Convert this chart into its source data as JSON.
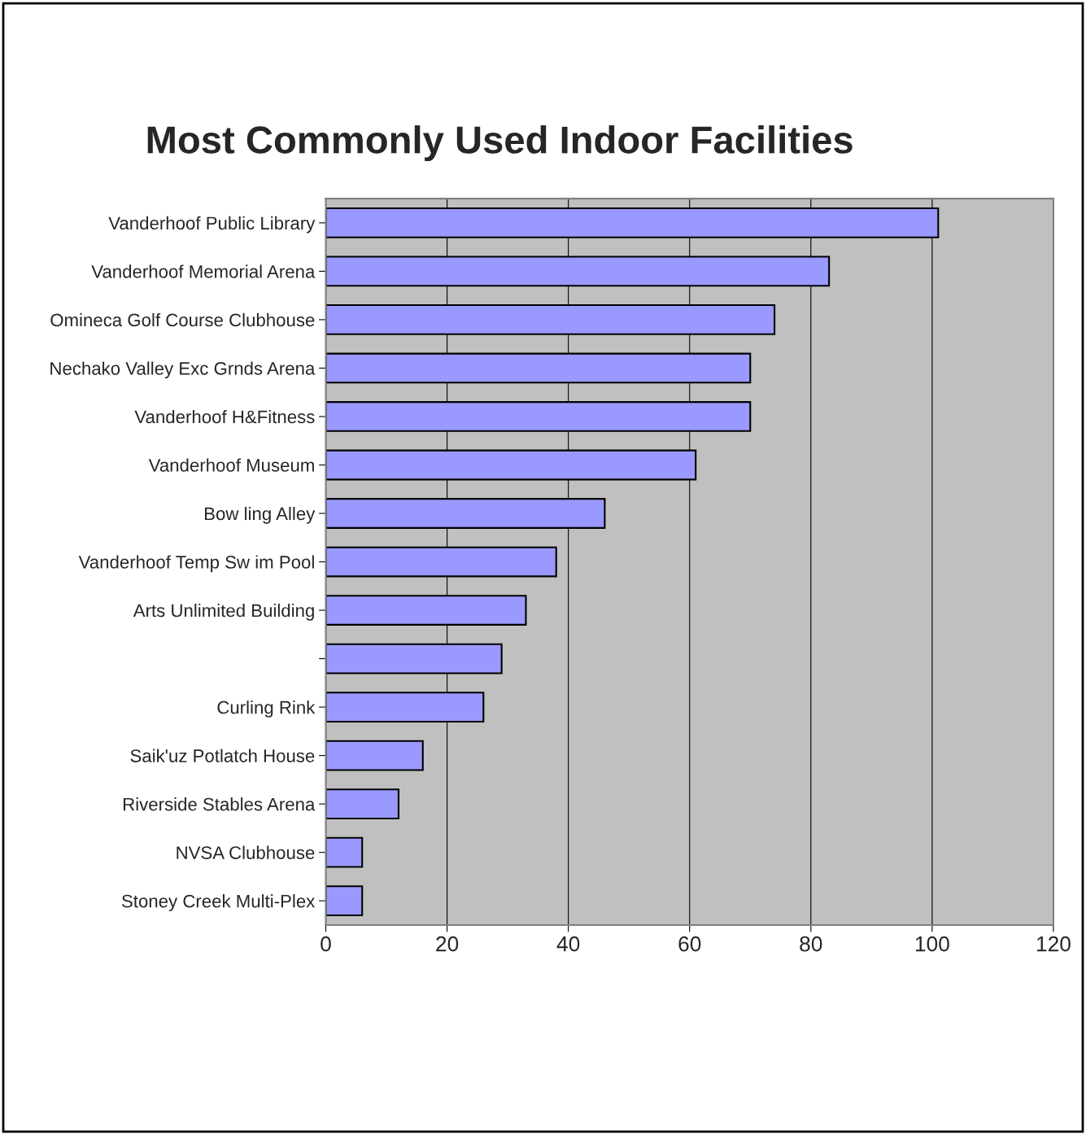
{
  "chart_data": {
    "type": "bar",
    "orientation": "horizontal",
    "title": "Most Commonly Used Indoor Facilities",
    "categories": [
      "Vanderhoof Public Library",
      "Vanderhoof Memorial Arena",
      "Omineca Golf Course Clubhouse",
      "Nechako Valley Exc Grnds Arena",
      "Vanderhoof H&Fitness",
      "Vanderhoof Museum",
      "Bow ling Alley",
      "Vanderhoof Temp Sw im Pool",
      "Arts Unlimited Building",
      null,
      "Curling Rink",
      "Saik'uz Potlatch House",
      "Riverside Stables Arena",
      "NVSA Clubhouse",
      "Stoney Creek Multi-Plex"
    ],
    "values": [
      101,
      83,
      74,
      70,
      70,
      61,
      46,
      38,
      33,
      29,
      26,
      16,
      12,
      6,
      6
    ],
    "color": "#9999ff",
    "xlim": [
      0,
      120
    ],
    "xticks": [
      0,
      20,
      40,
      60,
      80,
      100,
      120
    ],
    "grid": "x"
  }
}
